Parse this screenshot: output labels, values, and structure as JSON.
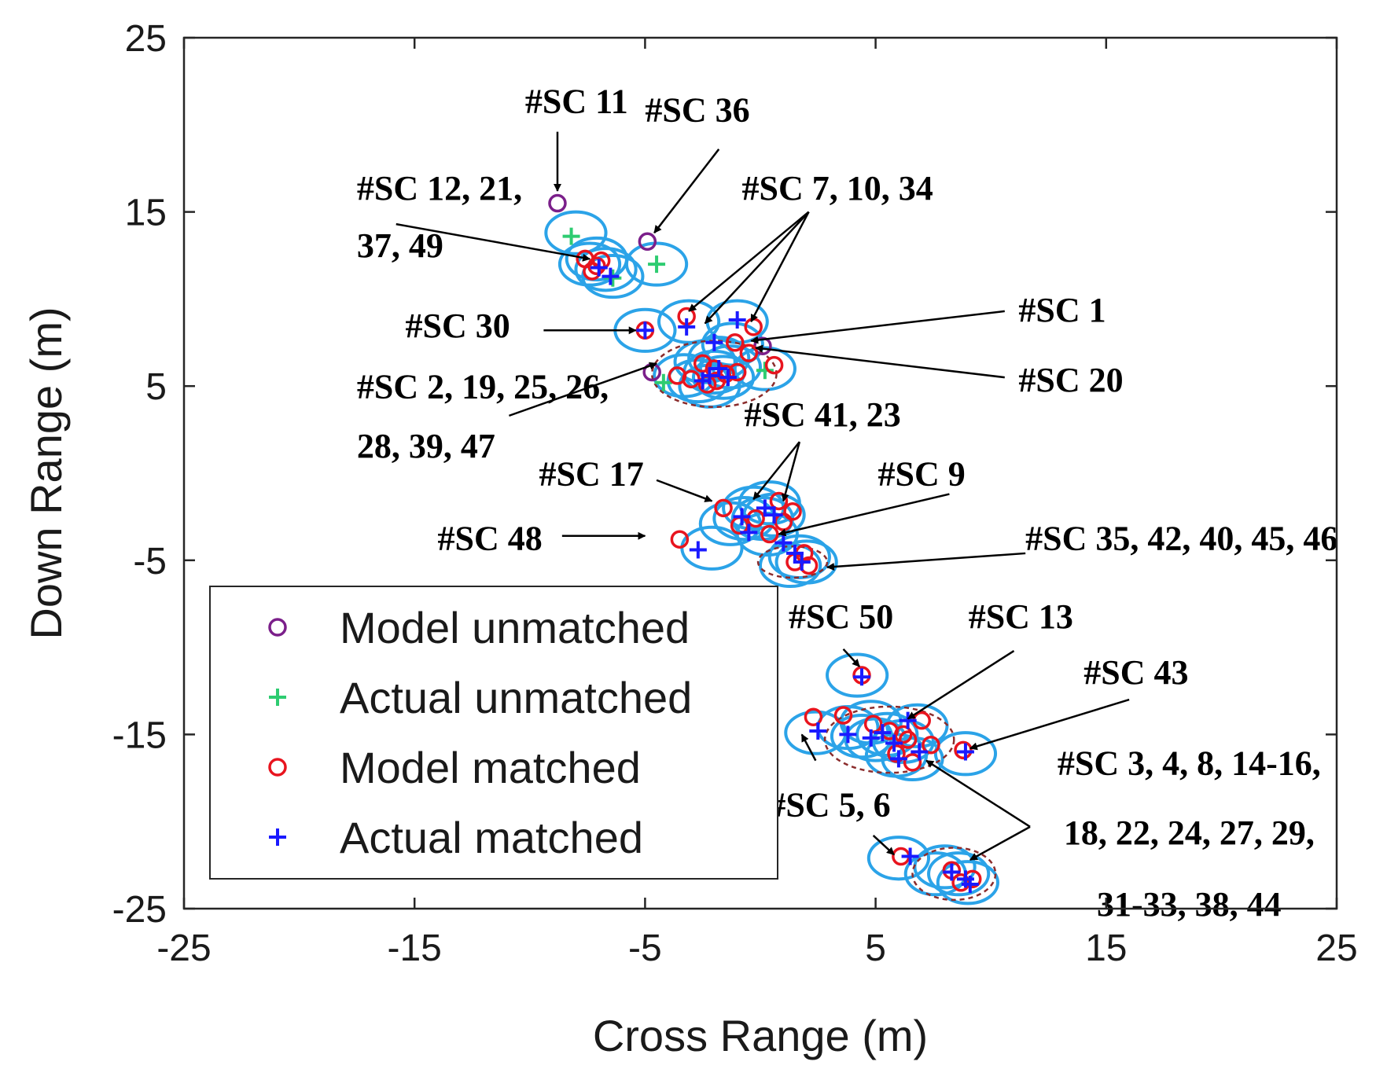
{
  "chart_data": {
    "type": "scatter",
    "title": "",
    "xlabel": "Cross Range (m)",
    "ylabel": "Down Range (m)",
    "xlim": [
      -25,
      25
    ],
    "ylim": [
      -25,
      25
    ],
    "xticks": [
      -25,
      -15,
      -5,
      5,
      15,
      25
    ],
    "yticks": [
      -25,
      -15,
      -5,
      5,
      15,
      25
    ],
    "xtick_labels": [
      "-25",
      "-15",
      "-5",
      "5",
      "15",
      "25"
    ],
    "ytick_labels": [
      "-25",
      "-15",
      "-5",
      "5",
      "15",
      "25"
    ],
    "grid": false,
    "legend_position": "lower-left",
    "colors": {
      "model_unmatched": "#7b1f8a",
      "actual_unmatched": "#2ecc71",
      "model_matched": "#e8141e",
      "actual_matched": "#1a1aff",
      "ellipse": "#2ba3e8",
      "cluster_outline": "#8b2c2c"
    },
    "legend": [
      {
        "key": "model_unmatched",
        "label": "Model unmatched",
        "marker": "circle"
      },
      {
        "key": "actual_unmatched",
        "label": "Actual unmatched",
        "marker": "plus"
      },
      {
        "key": "model_matched",
        "label": "Model matched",
        "marker": "circle"
      },
      {
        "key": "actual_matched",
        "label": "Actual matched",
        "marker": "plus"
      }
    ],
    "series": [
      {
        "name": "Model unmatched",
        "marker": "circle",
        "color_key": "model_unmatched",
        "x": [
          -8.8,
          -4.9,
          -4.7,
          0.1
        ],
        "y": [
          15.5,
          13.3,
          5.8,
          7.3
        ]
      },
      {
        "name": "Actual unmatched",
        "marker": "plus",
        "color_key": "actual_unmatched",
        "x": [
          -8.2,
          -4.5,
          -6.4,
          0.2,
          -4.2
        ],
        "y": [
          13.6,
          12.0,
          11.2,
          5.9,
          5.2
        ]
      },
      {
        "name": "Model matched",
        "marker": "circle",
        "color_key": "model_matched",
        "x": [
          -7.6,
          -7.1,
          -6.9,
          -7.3,
          -5.0,
          -3.2,
          -1.1,
          -0.3,
          -2.5,
          -2.0,
          -3.0,
          -2.3,
          -1.5,
          -3.6,
          -1.9,
          -1.0,
          0.6,
          -0.5,
          0.8,
          1.4,
          -1.6,
          -0.2,
          -0.9,
          0.4,
          1.0,
          1.9,
          1.5,
          2.1,
          -3.5,
          4.4,
          2.3,
          3.6,
          4.9,
          5.6,
          6.2,
          6.4,
          7.0,
          5.9,
          6.6,
          7.4,
          8.8,
          6.1,
          8.3,
          9.2,
          8.7
        ],
        "y": [
          12.3,
          11.9,
          12.2,
          11.6,
          8.2,
          9.0,
          7.5,
          8.4,
          6.3,
          6.0,
          5.4,
          5.1,
          5.7,
          5.6,
          5.3,
          5.8,
          6.2,
          6.9,
          -1.6,
          -2.2,
          -2.0,
          -2.6,
          -3.0,
          -3.5,
          -2.8,
          -4.6,
          -5.1,
          -5.3,
          -3.8,
          -11.6,
          -14.0,
          -13.9,
          -14.4,
          -14.8,
          -15.0,
          -15.3,
          -14.2,
          -16.1,
          -16.6,
          -15.6,
          -15.9,
          -22.0,
          -22.8,
          -23.3,
          -23.5
        ]
      },
      {
        "name": "Actual matched",
        "marker": "plus",
        "color_key": "actual_matched",
        "x": [
          -7.0,
          -6.5,
          -5.0,
          -3.2,
          -1.0,
          -2.0,
          -1.8,
          -2.5,
          -2.2,
          -1.4,
          0.2,
          -0.8,
          0.6,
          -0.5,
          1.5,
          1.8,
          1.0,
          -2.7,
          4.4,
          2.5,
          3.8,
          4.8,
          5.3,
          5.8,
          6.4,
          6.0,
          6.9,
          8.9,
          6.5,
          8.3,
          8.9,
          9.1
        ],
        "y": [
          11.8,
          11.3,
          8.2,
          8.4,
          8.8,
          7.5,
          6.0,
          5.3,
          5.6,
          5.5,
          -2.0,
          -2.5,
          -2.4,
          -3.4,
          -4.6,
          -5.1,
          -4.0,
          -4.4,
          -11.7,
          -14.8,
          -15.0,
          -15.2,
          -14.9,
          -15.5,
          -14.2,
          -16.4,
          -16.0,
          -16.0,
          -22.0,
          -22.9,
          -23.3,
          -23.6
        ]
      }
    ],
    "ellipses": [
      {
        "x": -8.0,
        "y": 13.8
      },
      {
        "x": -7.1,
        "y": 12.3
      },
      {
        "x": -6.7,
        "y": 11.7
      },
      {
        "x": -6.4,
        "y": 11.3
      },
      {
        "x": -7.4,
        "y": 12.0
      },
      {
        "x": -4.5,
        "y": 12.0
      },
      {
        "x": -5.0,
        "y": 8.2
      },
      {
        "x": -3.1,
        "y": 8.7
      },
      {
        "x": -1.0,
        "y": 8.7
      },
      {
        "x": -1.2,
        "y": 7.4
      },
      {
        "x": -2.4,
        "y": 6.4
      },
      {
        "x": -2.0,
        "y": 5.8
      },
      {
        "x": -1.6,
        "y": 5.5
      },
      {
        "x": -2.7,
        "y": 5.3
      },
      {
        "x": -2.2,
        "y": 5.0
      },
      {
        "x": -1.3,
        "y": 6.1
      },
      {
        "x": 0.2,
        "y": 6.0
      },
      {
        "x": -3.3,
        "y": 5.6
      },
      {
        "x": -1.8,
        "y": 6.6
      },
      {
        "x": -0.3,
        "y": -2.0
      },
      {
        "x": 0.4,
        "y": -1.7
      },
      {
        "x": 0.1,
        "y": -2.6
      },
      {
        "x": 0.6,
        "y": -2.4
      },
      {
        "x": -0.7,
        "y": -2.6
      },
      {
        "x": -1.3,
        "y": -2.9
      },
      {
        "x": 0.3,
        "y": -3.5
      },
      {
        "x": -2.1,
        "y": -4.3
      },
      {
        "x": 1.7,
        "y": -4.8
      },
      {
        "x": 1.3,
        "y": -5.3
      },
      {
        "x": 2.0,
        "y": -5.1
      },
      {
        "x": 4.2,
        "y": -11.6
      },
      {
        "x": 2.4,
        "y": -14.9
      },
      {
        "x": 3.8,
        "y": -14.6
      },
      {
        "x": 4.4,
        "y": -15.1
      },
      {
        "x": 5.0,
        "y": -15.3
      },
      {
        "x": 5.5,
        "y": -15.0
      },
      {
        "x": 6.2,
        "y": -15.4
      },
      {
        "x": 6.8,
        "y": -14.5
      },
      {
        "x": 5.9,
        "y": -16.2
      },
      {
        "x": 6.6,
        "y": -16.4
      },
      {
        "x": 4.8,
        "y": -14.3
      },
      {
        "x": 8.9,
        "y": -16.1
      },
      {
        "x": 6.0,
        "y": -22.1
      },
      {
        "x": 8.0,
        "y": -22.6
      },
      {
        "x": 8.6,
        "y": -23.0
      },
      {
        "x": 9.0,
        "y": -23.5
      },
      {
        "x": 7.6,
        "y": -23.0
      }
    ],
    "clusters": [
      {
        "x": -2.0,
        "y": 5.7,
        "rx": 2.7,
        "ry": 1.9
      },
      {
        "x": 1.4,
        "y": -5.1,
        "rx": 1.5,
        "ry": 0.9
      },
      {
        "x": 5.6,
        "y": -15.3,
        "rx": 2.8,
        "ry": 1.9
      },
      {
        "x": 8.4,
        "y": -23.0,
        "rx": 1.8,
        "ry": 1.5
      }
    ],
    "annotations": [
      {
        "lines": [
          "#SC 11"
        ],
        "text_at": [
          -10.2,
          20.7
        ],
        "anchor": "start",
        "arrows": [
          {
            "from": [
              -8.8,
              19.6
            ],
            "to": [
              -8.8,
              16.2
            ]
          }
        ]
      },
      {
        "lines": [
          "#SC 36"
        ],
        "text_at": [
          -5.0,
          20.2
        ],
        "anchor": "start",
        "arrows": [
          {
            "from": [
              -1.8,
              18.6
            ],
            "to": [
              -4.6,
              13.8
            ]
          }
        ]
      },
      {
        "lines": [
          "#SC 12, 21,",
          "37, 49"
        ],
        "text_at": [
          -17.5,
          15.7
        ],
        "anchor": "start",
        "line_dy": [
          0,
          3.3
        ],
        "arrows": [
          {
            "from": [
              -15.8,
              14.3
            ],
            "to": [
              -7.4,
              12.3
            ]
          }
        ]
      },
      {
        "lines": [
          "#SC 7, 10, 34"
        ],
        "text_at": [
          -0.8,
          15.7
        ],
        "anchor": "start",
        "arrows": [
          {
            "from": [
              2.1,
              15.0
            ],
            "to": [
              -3.1,
              9.3
            ]
          },
          {
            "from": [
              2.1,
              15.0
            ],
            "to": [
              -2.4,
              8.6
            ]
          },
          {
            "from": [
              2.1,
              15.0
            ],
            "to": [
              -0.4,
              8.7
            ]
          }
        ]
      },
      {
        "lines": [
          "#SC 30"
        ],
        "text_at": [
          -15.4,
          7.8
        ],
        "anchor": "start",
        "arrows": [
          {
            "from": [
              -9.4,
              8.2
            ],
            "to": [
              -5.4,
              8.2
            ]
          }
        ]
      },
      {
        "lines": [
          "#SC 1"
        ],
        "text_at": [
          11.2,
          8.7
        ],
        "anchor": "start",
        "arrows": [
          {
            "from": [
              10.6,
              9.3
            ],
            "to": [
              -0.4,
              7.6
            ]
          }
        ]
      },
      {
        "lines": [
          "#SC 20"
        ],
        "text_at": [
          11.2,
          4.7
        ],
        "anchor": "start",
        "arrows": [
          {
            "from": [
              10.6,
              5.5
            ],
            "to": [
              -0.2,
              7.2
            ]
          }
        ]
      },
      {
        "lines": [
          "#SC 2, 19, 25, 26,",
          "28, 39, 47"
        ],
        "text_at": [
          -17.5,
          4.3
        ],
        "anchor": "start",
        "line_dy": [
          0,
          3.4
        ],
        "arrows": [
          {
            "from": [
              -10.9,
              3.3
            ],
            "to": [
              -4.5,
              6.3
            ]
          }
        ]
      },
      {
        "lines": [
          "#SC 41, 23"
        ],
        "text_at": [
          -0.7,
          2.7
        ],
        "anchor": "start",
        "arrows": [
          {
            "from": [
              1.7,
              1.8
            ],
            "to": [
              -0.3,
              -1.5
            ]
          },
          {
            "from": [
              1.7,
              1.8
            ],
            "to": [
              1.0,
              -1.6
            ]
          }
        ]
      },
      {
        "lines": [
          "#SC 17"
        ],
        "text_at": [
          -9.6,
          -0.7
        ],
        "anchor": "start",
        "arrows": [
          {
            "from": [
              -4.5,
              -0.4
            ],
            "to": [
              -2.1,
              -1.6
            ]
          }
        ]
      },
      {
        "lines": [
          "#SC 9"
        ],
        "text_at": [
          5.1,
          -0.7
        ],
        "anchor": "start",
        "arrows": [
          {
            "from": [
              8.2,
              -1.2
            ],
            "to": [
              0.8,
              -3.5
            ]
          }
        ]
      },
      {
        "lines": [
          "#SC 48"
        ],
        "text_at": [
          -14.0,
          -4.4
        ],
        "anchor": "start",
        "arrows": [
          {
            "from": [
              -8.6,
              -3.6
            ],
            "to": [
              -5.0,
              -3.6
            ]
          }
        ]
      },
      {
        "lines": [
          "#SC 35, 42, 40, 45, 46"
        ],
        "text_at": [
          11.5,
          -4.4
        ],
        "anchor": "start",
        "arrows": [
          {
            "from": [
              11.5,
              -4.6
            ],
            "to": [
              2.9,
              -5.4
            ]
          }
        ]
      },
      {
        "lines": [
          "#SC 50"
        ],
        "text_at": [
          3.5,
          -8.9
        ],
        "anchor": "middle",
        "arrows": [
          {
            "from": [
              3.6,
              -10.1
            ],
            "to": [
              4.3,
              -11.1
            ]
          }
        ]
      },
      {
        "lines": [
          "#SC 13"
        ],
        "text_at": [
          11.3,
          -8.9
        ],
        "anchor": "middle",
        "arrows": [
          {
            "from": [
              11.0,
              -10.2
            ],
            "to": [
              6.4,
              -14.1
            ]
          }
        ]
      },
      {
        "lines": [
          "#SC 43"
        ],
        "text_at": [
          16.3,
          -12.1
        ],
        "anchor": "middle",
        "arrows": [
          {
            "from": [
              16.0,
              -13.0
            ],
            "to": [
              9.1,
              -15.8
            ]
          }
        ]
      },
      {
        "lines": [
          "#SC 5, 6"
        ],
        "text_at": [
          3.0,
          -19.7
        ],
        "anchor": "middle",
        "arrows": [
          {
            "from": [
              2.4,
              -16.5
            ],
            "to": [
              1.8,
              -15.0
            ]
          },
          {
            "from": [
              4.9,
              -20.8
            ],
            "to": [
              5.8,
              -21.9
            ]
          }
        ]
      },
      {
        "lines": [
          "#SC 3, 4, 8, 14-16,",
          "18, 22, 24, 27, 29,",
          "31-33, 38, 44"
        ],
        "text_at": [
          18.6,
          -17.3
        ],
        "anchor": "middle",
        "line_dy": [
          0,
          4.0,
          8.1
        ],
        "arrows": [
          {
            "from": [
              11.7,
              -20.3
            ],
            "to": [
              7.2,
              -16.5
            ]
          },
          {
            "from": [
              11.7,
              -20.3
            ],
            "to": [
              9.1,
              -22.2
            ]
          }
        ]
      }
    ]
  }
}
